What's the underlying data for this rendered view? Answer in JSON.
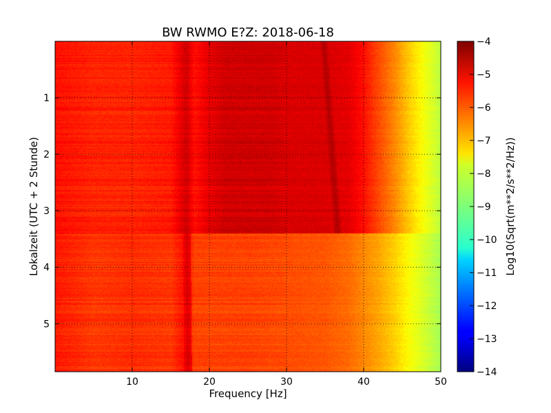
{
  "chart_data": {
    "type": "heatmap",
    "title": "BW RWMO E?Z: 2018-06-18",
    "xlabel": "Frequency [Hz]",
    "ylabel": "Lokalzeit (UTC + 2 Stunde)",
    "xlim": [
      0,
      50
    ],
    "ylim": [
      5.85,
      0.0
    ],
    "y_inverted": true,
    "xticks": [
      10,
      20,
      30,
      40,
      50
    ],
    "yticks": [
      1,
      2,
      3,
      4,
      5
    ],
    "grid": true,
    "colormap": "jet",
    "colorbar": {
      "label": "Log10(Sqrt(m**2/s**2/Hz))",
      "range": [
        -14,
        -4
      ],
      "ticks": [
        -4,
        -5,
        -6,
        -7,
        -8,
        -9,
        -10,
        -11,
        -12,
        -13,
        -14
      ]
    },
    "regime_change_hour": 3.4,
    "spectrum_before": {
      "hours": [
        0,
        3.4
      ],
      "freq_hz": [
        0,
        5,
        10,
        15,
        17,
        18,
        20,
        22,
        25,
        28,
        30,
        35,
        38,
        40,
        42,
        44,
        46,
        48,
        50
      ],
      "log10_amp": [
        -5.4,
        -5.6,
        -5.6,
        -5.5,
        -4.8,
        -5.4,
        -5.0,
        -4.8,
        -4.8,
        -4.8,
        -4.9,
        -4.9,
        -5.0,
        -5.4,
        -6.0,
        -6.6,
        -7.3,
        -7.9,
        -8.4
      ]
    },
    "spectrum_after": {
      "hours": [
        3.4,
        5.85
      ],
      "freq_hz": [
        0,
        5,
        10,
        15,
        17,
        18,
        20,
        25,
        30,
        35,
        38,
        40,
        42,
        44,
        46,
        48,
        50
      ],
      "log10_amp": [
        -5.5,
        -5.8,
        -5.7,
        -5.8,
        -5.3,
        -5.9,
        -5.9,
        -5.9,
        -6.0,
        -6.1,
        -6.3,
        -6.6,
        -6.9,
        -7.3,
        -7.8,
        -8.2,
        -8.6
      ]
    },
    "features": [
      {
        "kind": "line",
        "freq_hz_start": 34.8,
        "freq_hz_end": 36.6,
        "hour_start": 0.0,
        "hour_end": 3.4,
        "log10_amp": -4.5
      },
      {
        "kind": "line",
        "freq_hz_start": 16.8,
        "freq_hz_end": 17.2,
        "hour_start": 0.0,
        "hour_end": 5.85,
        "log10_amp": -4.9
      }
    ]
  }
}
